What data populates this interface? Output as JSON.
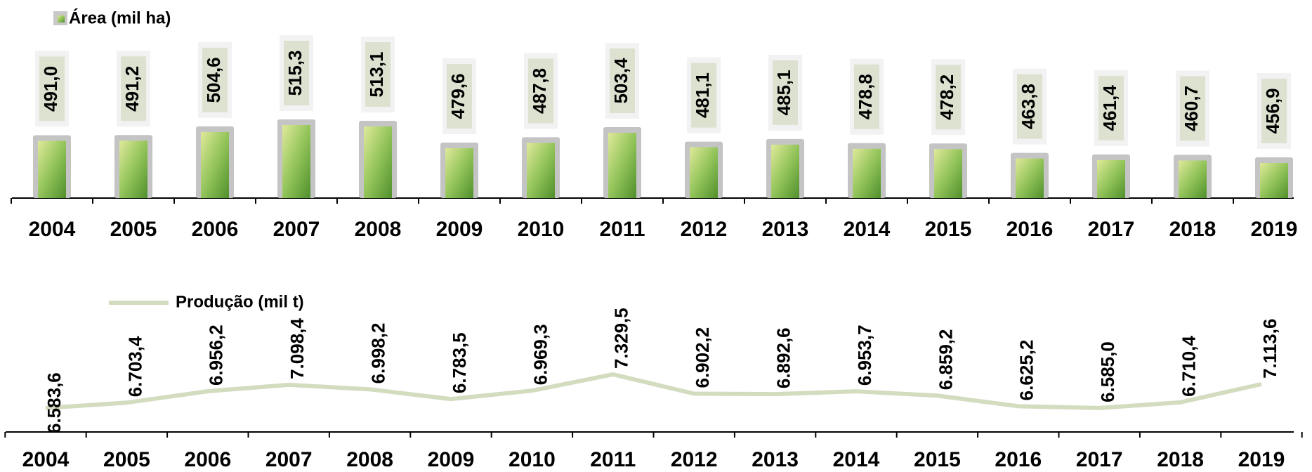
{
  "chart_data": [
    {
      "type": "bar",
      "categories": [
        "2004",
        "2005",
        "2006",
        "2007",
        "2008",
        "2009",
        "2010",
        "2011",
        "2012",
        "2013",
        "2014",
        "2015",
        "2016",
        "2017",
        "2018",
        "2019"
      ],
      "series": [
        {
          "name": "Área (mil ha)",
          "color": "#8fbf4a",
          "values": [
            491.0,
            491.2,
            504.6,
            515.3,
            513.1,
            479.6,
            487.8,
            503.4,
            481.1,
            485.1,
            478.8,
            478.2,
            463.8,
            461.4,
            460.7,
            456.9
          ],
          "value_labels": [
            "491,0",
            "491,2",
            "504,6",
            "515,3",
            "513,1",
            "479,6",
            "487,8",
            "503,4",
            "481,1",
            "485,1",
            "478,8",
            "478,2",
            "463,8",
            "461,4",
            "460,7",
            "456,9"
          ]
        }
      ]
    },
    {
      "type": "line",
      "categories": [
        "2004",
        "2005",
        "2006",
        "2007",
        "2008",
        "2009",
        "2010",
        "2011",
        "2012",
        "2013",
        "2014",
        "2015",
        "2016",
        "2017",
        "2018",
        "2019"
      ],
      "series": [
        {
          "name": "Produção (mil t)",
          "color": "#d3dcbf",
          "values": [
            6583.6,
            6703.4,
            6956.2,
            7098.4,
            6998.2,
            6783.5,
            6969.3,
            7329.5,
            6902.2,
            6892.6,
            6953.7,
            6859.2,
            6625.2,
            6585.0,
            6710.4,
            7113.6
          ],
          "value_labels": [
            "6.583,6",
            "6.703,4",
            "6.956,2",
            "7.098,4",
            "6.998,2",
            "6.783,5",
            "6.969,3",
            "7.329,5",
            "6.902,2",
            "6.892,6",
            "6.953,7",
            "6.859,2",
            "6.625,2",
            "6.585,0",
            "6.710,4",
            "7.113,6"
          ]
        }
      ]
    }
  ]
}
